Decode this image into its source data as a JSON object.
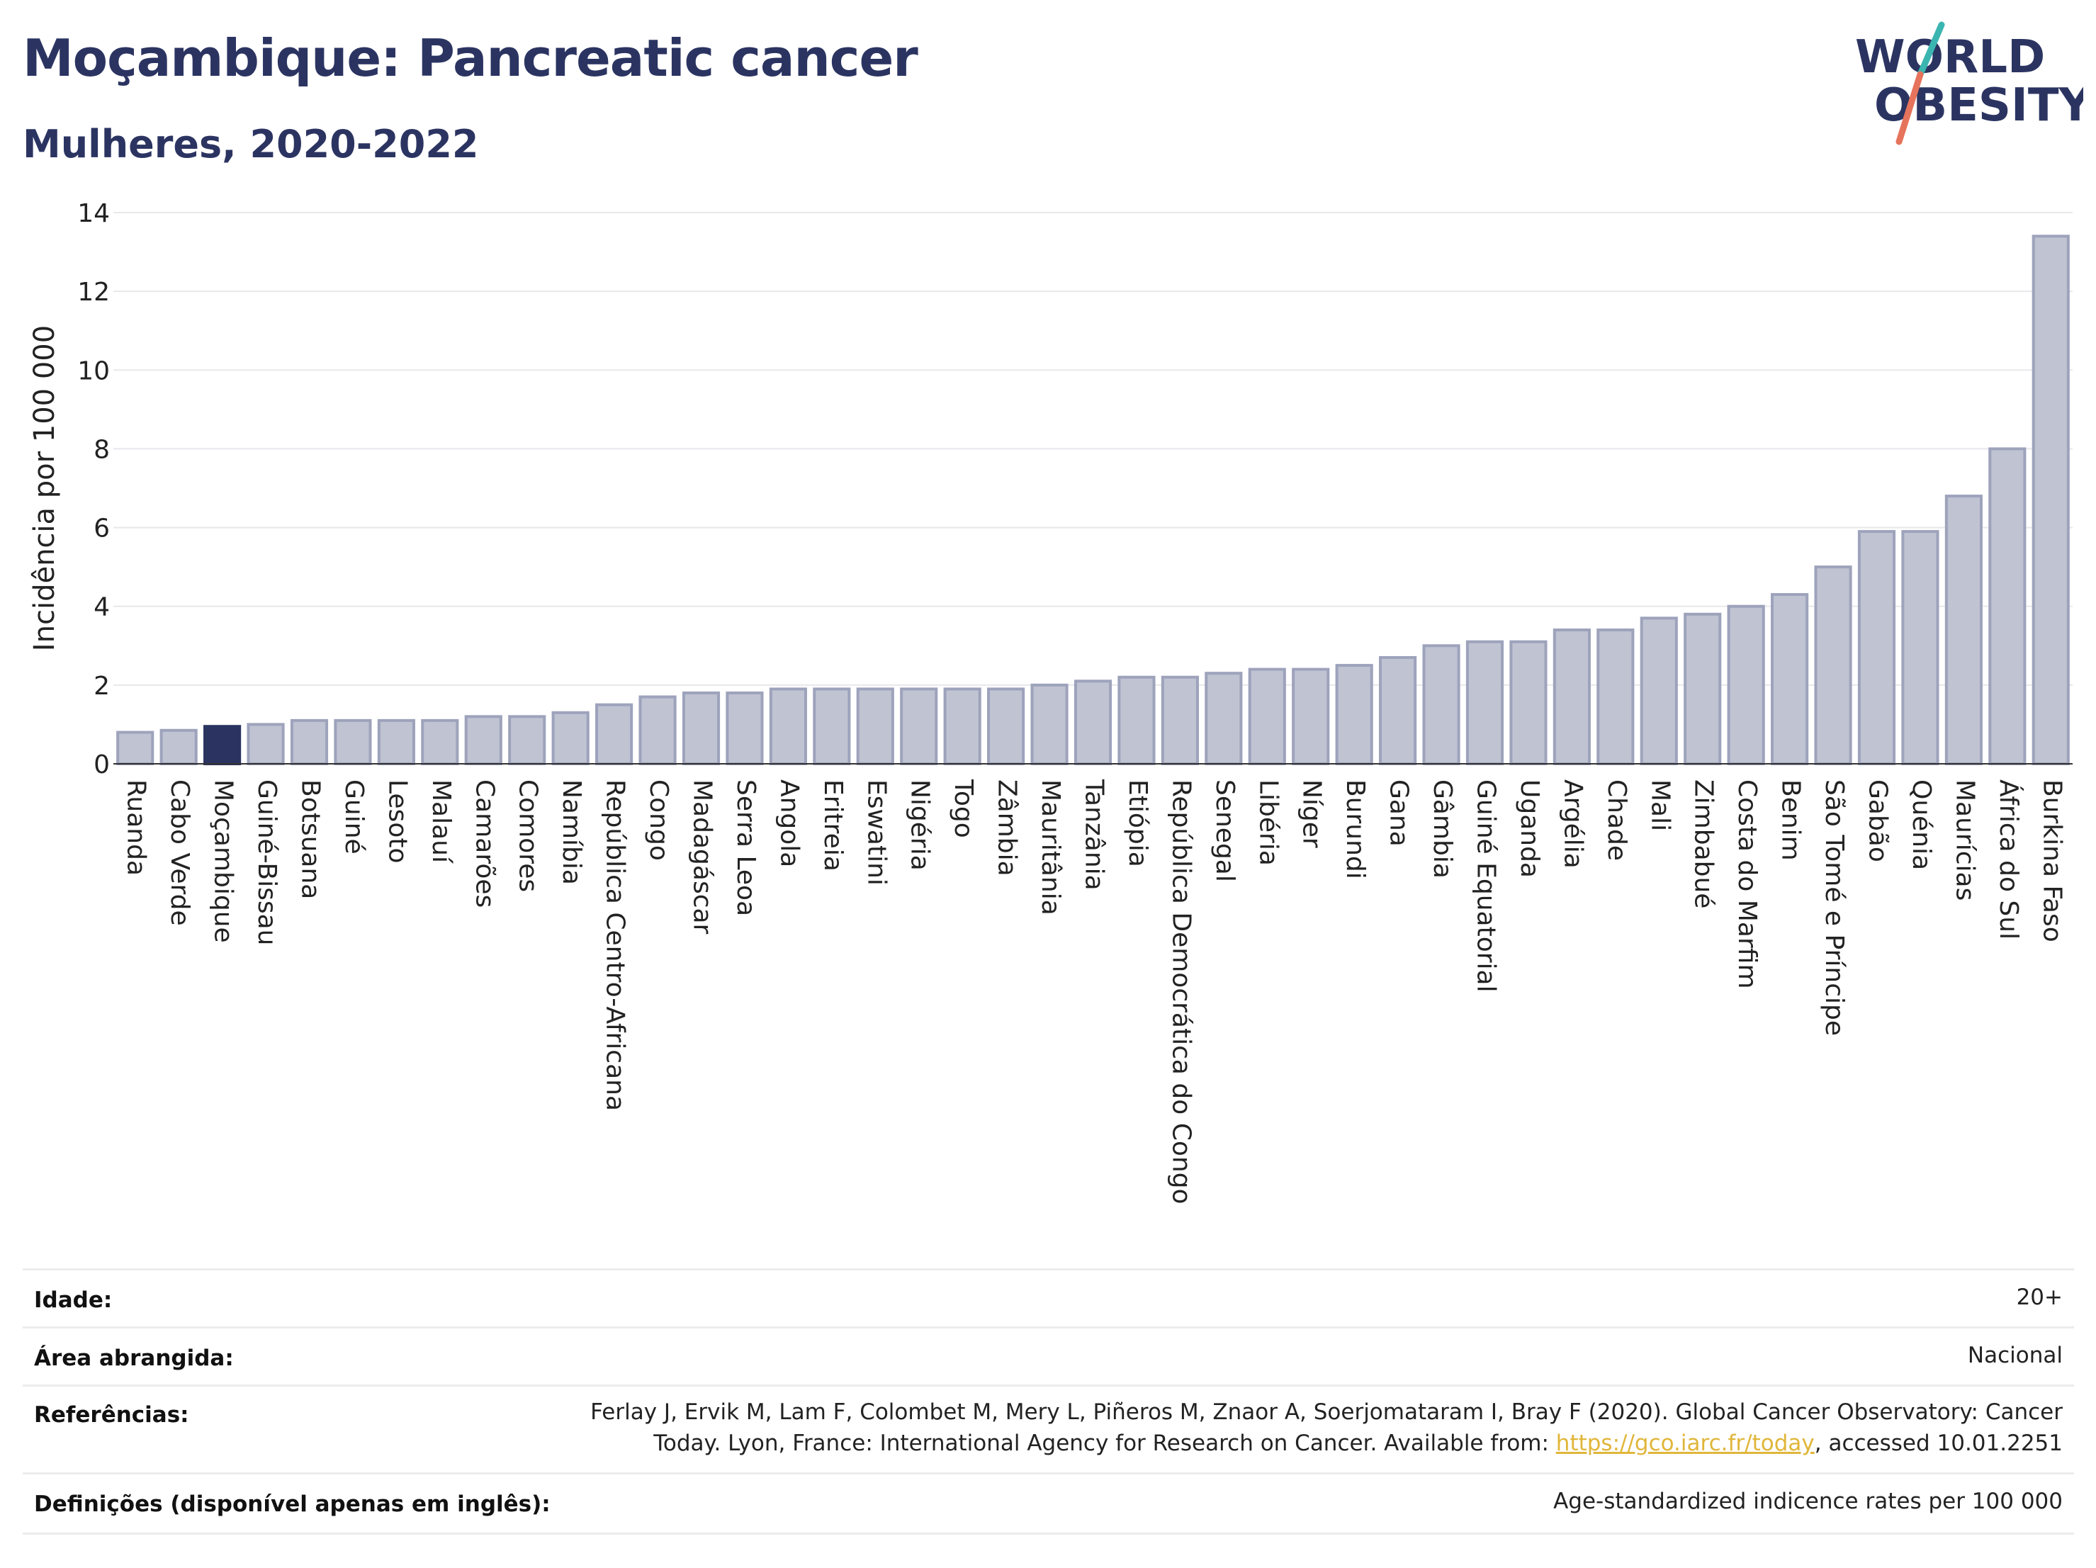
{
  "header": {
    "title": "Moçambique: Pancreatic cancer",
    "subtitle": "Mulheres, 2020-2022",
    "logo_line1": "WORLD",
    "logo_line2": "OBESITY"
  },
  "colors": {
    "title": "#2b3461",
    "bar": "#c0c3d2",
    "bar_stroke": "#9ea3bc",
    "highlight": "#2b3461",
    "logo_slash_teal": "#3ab5b0",
    "logo_slash_red": "#e6735c",
    "link": "#e0b63a"
  },
  "chart_data": {
    "type": "bar",
    "ylabel": "Incidência por 100 000",
    "ylim": [
      0,
      14
    ],
    "yticks": [
      0,
      2,
      4,
      6,
      8,
      10,
      12,
      14
    ],
    "highlight": "Moçambique",
    "grid": true,
    "categories": [
      "Ruanda",
      "Cabo Verde",
      "Moçambique",
      "Guiné-Bissau",
      "Botsuana",
      "Guiné",
      "Lesoto",
      "Malauí",
      "Camarões",
      "Comores",
      "Namíbia",
      "República Centro-Africana",
      "Congo",
      "Madagáscar",
      "Serra Leoa",
      "Angola",
      "Eritreia",
      "Eswatini",
      "Nigéria",
      "Togo",
      "Zâmbia",
      "Mauritânia",
      "Tanzânia",
      "Etiópia",
      "República Democrática do Congo",
      "Senegal",
      "Libéria",
      "Níger",
      "Burundi",
      "Gana",
      "Gâmbia",
      "Guiné Equatorial",
      "Uganda",
      "Argélia",
      "Chade",
      "Mali",
      "Zimbabué",
      "Costa do Marfim",
      "Benim",
      "São Tomé e Príncipe",
      "Gabão",
      "Quénia",
      "Maurícias",
      "África do Sul",
      "Burkina Faso"
    ],
    "values": [
      0.8,
      0.85,
      0.95,
      1.0,
      1.1,
      1.1,
      1.1,
      1.1,
      1.2,
      1.2,
      1.3,
      1.5,
      1.7,
      1.8,
      1.8,
      1.9,
      1.9,
      1.9,
      1.9,
      1.9,
      1.9,
      2.0,
      2.1,
      2.2,
      2.2,
      2.3,
      2.4,
      2.4,
      2.5,
      2.7,
      3.0,
      3.1,
      3.1,
      3.4,
      3.4,
      3.7,
      3.8,
      4.0,
      4.3,
      5.0,
      5.9,
      5.9,
      6.8,
      8.0,
      13.4
    ]
  },
  "info": {
    "age_label": "Idade:",
    "age_value": "20+",
    "area_label": "Área abrangida:",
    "area_value": "Nacional",
    "refs_label": "Referências:",
    "refs_line1": "Ferlay J, Ervik M, Lam F, Colombet M, Mery L, Piñeros M, Znaor A, Soerjomataram I, Bray F (2020). Global Cancer Observatory: Cancer",
    "refs_line2_pre": "Today. Lyon, France: International Agency for Research on Cancer. Available from: ",
    "refs_link": "https://gco.iarc.fr/today",
    "refs_line2_post": ", accessed 10.01.2251",
    "defs_label": "Definições (disponível apenas em inglês):",
    "defs_value": "Age-standardized indicence rates per 100 000"
  }
}
